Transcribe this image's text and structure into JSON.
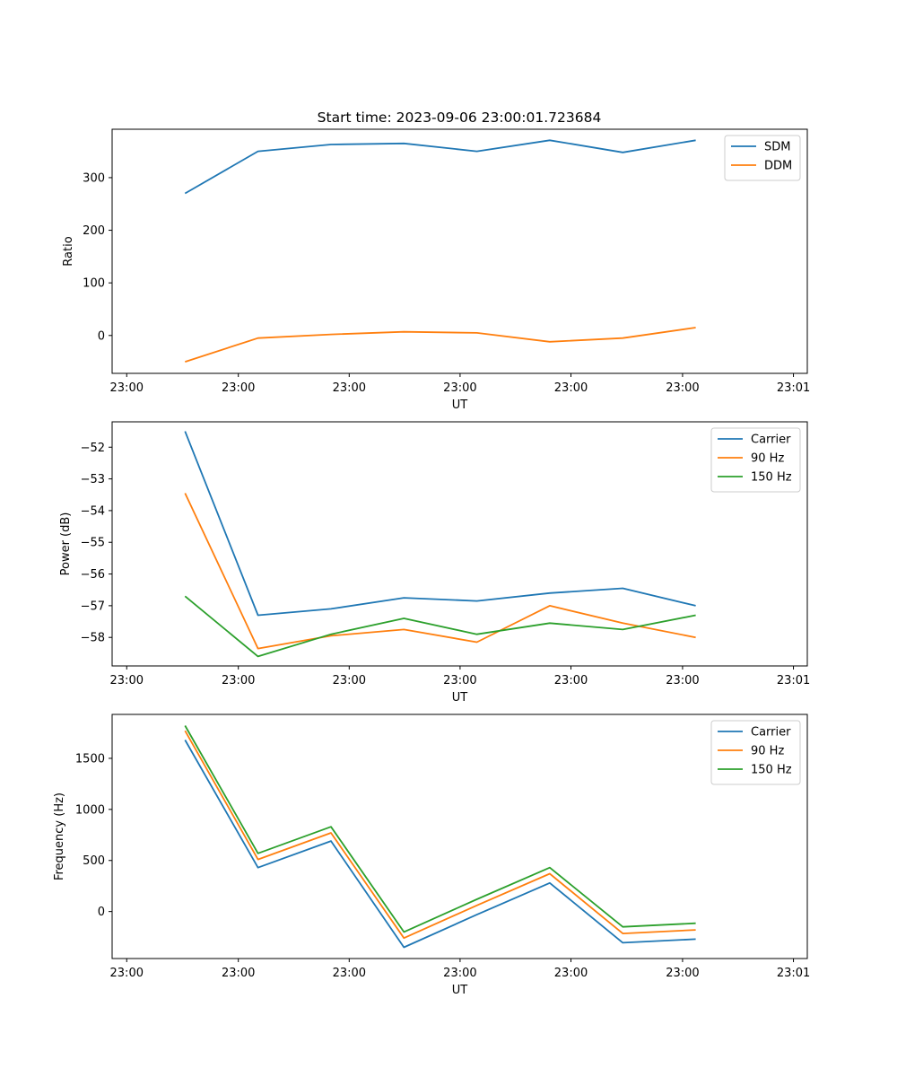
{
  "chart_data": [
    {
      "type": "line",
      "title": "Start time: 2023-09-06 23:00:01.723684",
      "xlabel": "UT",
      "ylabel": "Ratio",
      "x": [
        1,
        2,
        3,
        4,
        5,
        6,
        7,
        8
      ],
      "xticks": [
        0,
        2,
        4,
        6,
        8,
        10
      ],
      "xtick_labels": [
        "23:00",
        "23:00",
        "23:00",
        "23:00",
        "23:00",
        "23:00",
        "23:01"
      ],
      "xtick_values": [
        0.2,
        1.73,
        3.25,
        4.77,
        6.29,
        7.82,
        9.34
      ],
      "xlim": [
        -0.0,
        9.53
      ],
      "ylim": [
        -72,
        392
      ],
      "yticks": [
        0,
        100,
        200,
        300
      ],
      "ytick_labels": [
        "0",
        "100",
        "200",
        "300"
      ],
      "legend_position": "top-right",
      "series": [
        {
          "name": "SDM",
          "color": "#1f77b4",
          "values": [
            270,
            350,
            363,
            365,
            350,
            371,
            348,
            371
          ]
        },
        {
          "name": "DDM",
          "color": "#ff7f0e",
          "values": [
            -50,
            -5,
            2,
            7,
            5,
            -12,
            -5,
            15
          ]
        }
      ]
    },
    {
      "type": "line",
      "title": "",
      "xlabel": "UT",
      "ylabel": "Power (dB)",
      "x": [
        1,
        2,
        3,
        4,
        5,
        6,
        7,
        8
      ],
      "xtick_labels": [
        "23:00",
        "23:00",
        "23:00",
        "23:00",
        "23:00",
        "23:00",
        "23:01"
      ],
      "xtick_values": [
        0.2,
        1.73,
        3.25,
        4.77,
        6.29,
        7.82,
        9.34
      ],
      "xlim": [
        -0.0,
        9.53
      ],
      "ylim": [
        -58.9,
        -51.2
      ],
      "yticks": [
        -58,
        -57,
        -56,
        -55,
        -54,
        -53,
        -52
      ],
      "ytick_labels": [
        "−58",
        "−57",
        "−56",
        "−55",
        "−54",
        "−53",
        "−52"
      ],
      "legend_position": "top-right",
      "series": [
        {
          "name": "Carrier",
          "color": "#1f77b4",
          "values": [
            -51.5,
            -57.3,
            -57.1,
            -56.75,
            -56.85,
            -56.6,
            -56.45,
            -57.0
          ]
        },
        {
          "name": "90 Hz",
          "color": "#ff7f0e",
          "values": [
            -53.45,
            -58.35,
            -57.95,
            -57.75,
            -58.15,
            -57.0,
            -57.55,
            -58.0
          ]
        },
        {
          "name": "150 Hz",
          "color": "#2ca02c",
          "values": [
            -56.7,
            -58.6,
            -57.9,
            -57.4,
            -57.9,
            -57.55,
            -57.75,
            -57.3
          ]
        }
      ]
    },
    {
      "type": "line",
      "title": "",
      "xlabel": "UT",
      "ylabel": "Frequency (Hz)",
      "x": [
        1,
        2,
        3,
        4,
        5,
        6,
        7,
        8
      ],
      "xtick_labels": [
        "23:00",
        "23:00",
        "23:00",
        "23:00",
        "23:00",
        "23:00",
        "23:01"
      ],
      "xtick_values": [
        0.2,
        1.73,
        3.25,
        4.77,
        6.29,
        7.82,
        9.34
      ],
      "xlim": [
        -0.0,
        9.53
      ],
      "ylim": [
        -460,
        1930
      ],
      "yticks": [
        0,
        500,
        1000,
        1500
      ],
      "ytick_labels": [
        "0",
        "500",
        "1000",
        "1500"
      ],
      "legend_position": "top-right",
      "series": [
        {
          "name": "Carrier",
          "color": "#1f77b4",
          "values": [
            1680,
            430,
            690,
            -350,
            -30,
            280,
            -305,
            -270
          ]
        },
        {
          "name": "90 Hz",
          "color": "#ff7f0e",
          "values": [
            1770,
            510,
            770,
            -260,
            60,
            370,
            -215,
            -180
          ]
        },
        {
          "name": "150 Hz",
          "color": "#2ca02c",
          "values": [
            1820,
            570,
            830,
            -200,
            120,
            430,
            -150,
            -115
          ]
        }
      ]
    }
  ]
}
